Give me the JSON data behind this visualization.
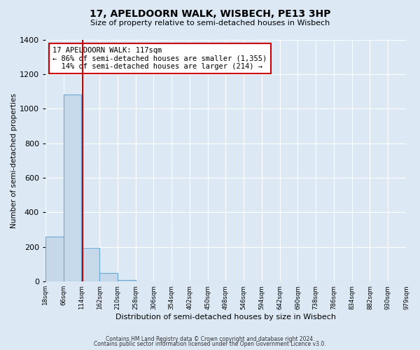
{
  "title": "17, APELDOORN WALK, WISBECH, PE13 3HP",
  "subtitle": "Size of property relative to semi-detached houses in Wisbech",
  "xlabel": "Distribution of semi-detached houses by size in Wisbech",
  "ylabel": "Number of semi-detached properties",
  "bin_edges": [
    18,
    66,
    114,
    162,
    210,
    258,
    306,
    354,
    402,
    450,
    498,
    546,
    594,
    642,
    690,
    738,
    786,
    834,
    882,
    930,
    979
  ],
  "bin_labels": [
    "18sqm",
    "66sqm",
    "114sqm",
    "162sqm",
    "210sqm",
    "258sqm",
    "306sqm",
    "354sqm",
    "402sqm",
    "450sqm",
    "498sqm",
    "546sqm",
    "594sqm",
    "642sqm",
    "690sqm",
    "738sqm",
    "786sqm",
    "834sqm",
    "882sqm",
    "930sqm",
    "979sqm"
  ],
  "counts": [
    262,
    1083,
    197,
    48,
    10,
    0,
    0,
    0,
    0,
    0,
    0,
    0,
    0,
    0,
    0,
    0,
    0,
    0,
    0,
    0
  ],
  "bar_color": "#c5d9ea",
  "bar_edge_color": "#6aaad4",
  "property_line_x": 117,
  "property_line_color": "#cc0000",
  "annotation_line1": "17 APELDOORN WALK: 117sqm",
  "annotation_line2": "← 86% of semi-detached houses are smaller (1,355)",
  "annotation_line3": "  14% of semi-detached houses are larger (214) →",
  "annotation_box_color": "#ffffff",
  "annotation_box_edge": "#cc0000",
  "ylim": [
    0,
    1400
  ],
  "yticks": [
    0,
    200,
    400,
    600,
    800,
    1000,
    1200,
    1400
  ],
  "background_color": "#dce9f5",
  "grid_color": "#ffffff",
  "footer_line1": "Contains HM Land Registry data © Crown copyright and database right 2024.",
  "footer_line2": "Contains public sector information licensed under the Open Government Licence v3.0."
}
